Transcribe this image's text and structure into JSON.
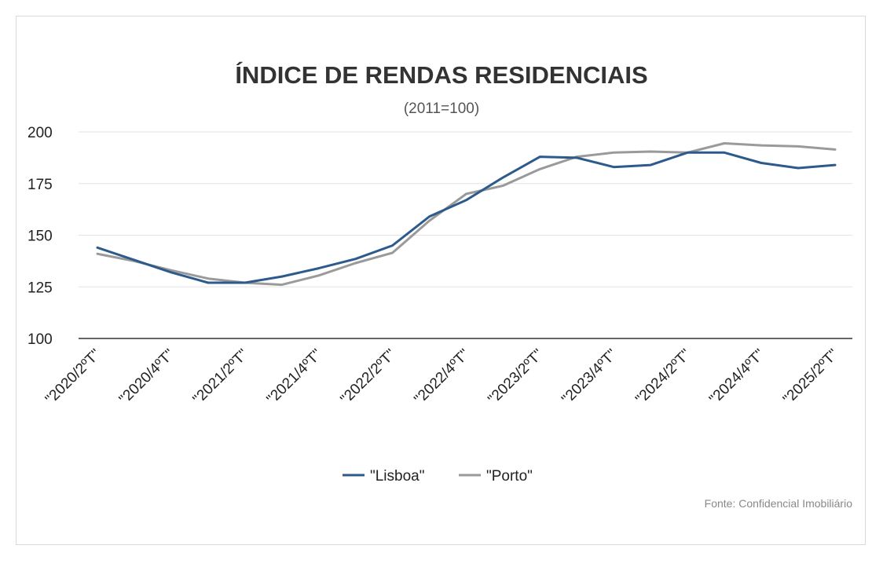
{
  "chart_data": {
    "type": "line",
    "title": "ÍNDICE DE RENDAS RESIDENCIAIS",
    "subtitle": "(2011=100)",
    "source": "Fonte: Confidencial Imobiliário",
    "ylim": [
      100,
      200
    ],
    "yticks": [
      "200",
      "175",
      "150",
      "125",
      "100"
    ],
    "ytick_values": [
      200,
      175,
      150,
      125,
      100
    ],
    "grid": true,
    "legend_position": "bottom",
    "x_count": 21,
    "xtick_labels": [
      "\"2020/2ºT\"",
      "\"2020/4ºT\"",
      "\"2021/2ºT\"",
      "\"2021/4ºT\"",
      "\"2022/2ºT\"",
      "\"2022/4ºT\"",
      "\"2023/2ºT\"",
      "\"2023/4ºT\"",
      "\"2024/2ºT\"",
      "\"2024/4ºT\"",
      "\"2025/2ºT\""
    ],
    "xtick_indices": [
      0,
      2,
      4,
      6,
      8,
      10,
      12,
      14,
      16,
      18,
      20
    ],
    "series": [
      {
        "name": "\"Lisboa\"",
        "color": "#2d5a8c",
        "values": [
          144,
          138,
          132,
          127,
          127,
          130,
          134,
          138.5,
          145,
          159,
          167,
          178,
          188,
          187.5,
          183,
          184,
          190,
          190,
          185,
          182.5,
          184
        ]
      },
      {
        "name": "\"Porto\"",
        "color": "#9a9a9a",
        "values": [
          141,
          137.5,
          133,
          129,
          127,
          126,
          130.5,
          136.5,
          141.5,
          157,
          170,
          174,
          182,
          188,
          190,
          190.5,
          190,
          194.5,
          193.5,
          193,
          191.5
        ]
      }
    ]
  }
}
